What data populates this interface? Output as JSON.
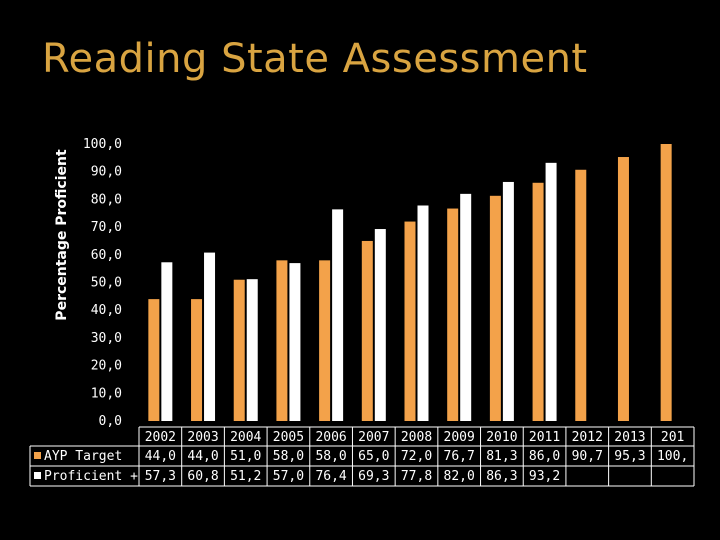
{
  "slide": {
    "title": "Reading State Assessment"
  },
  "colors": {
    "background": "#000000",
    "title": "#d9a441",
    "ayp": "#f3a24a",
    "proficient": "#ffffff",
    "grid": "#ffffff"
  },
  "chart_data": {
    "type": "bar",
    "title": "",
    "xlabel": "",
    "ylabel": "Percentage Proficient",
    "ylim": [
      0,
      100
    ],
    "yticks": [
      0,
      10,
      20,
      30,
      40,
      50,
      60,
      70,
      80,
      90,
      100
    ],
    "ytick_labels": [
      "0,0",
      "10,0",
      "20,0",
      "30,0",
      "40,0",
      "50,0",
      "60,0",
      "70,0",
      "80,0",
      "90,0",
      "100,0"
    ],
    "categories": [
      "2002",
      "2003",
      "2004",
      "2005",
      "2006",
      "2007",
      "2008",
      "2009",
      "2010",
      "2011",
      "2012",
      "2013",
      "201"
    ],
    "grid": false,
    "legend": "data-table-left",
    "series": [
      {
        "name": "AYP Target",
        "values": [
          44.0,
          44.0,
          51.0,
          58.0,
          58.0,
          65.0,
          72.0,
          76.7,
          81.3,
          86.0,
          90.7,
          95.3,
          100.0
        ],
        "labels": [
          "44,0",
          "44,0",
          "51,0",
          "58,0",
          "58,0",
          "65,0",
          "72,0",
          "76,7",
          "81,3",
          "86,0",
          "90,7",
          "95,3",
          "100,"
        ]
      },
      {
        "name": "Proficient +",
        "values": [
          57.3,
          60.8,
          51.2,
          57.0,
          76.4,
          69.3,
          77.8,
          82.0,
          86.3,
          93.2,
          null,
          null,
          null
        ],
        "labels": [
          "57,3",
          "60,8",
          "51,2",
          "57,0",
          "76,4",
          "69,3",
          "77,8",
          "82,0",
          "86,3",
          "93,2",
          "",
          "",
          ""
        ]
      }
    ]
  }
}
